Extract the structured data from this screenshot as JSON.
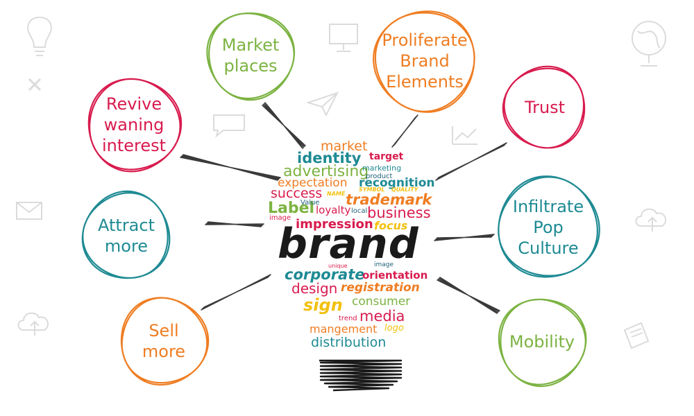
{
  "colors": {
    "red": "#d81b4e",
    "green": "#7cb342",
    "orange": "#ef7d22",
    "teal": "#1e8a93",
    "navy": "#1f5f7a",
    "yellow": "#f2c10f",
    "black": "#1a1a1a",
    "ink": "#3a3a3a",
    "faint": "#cfcfcf"
  },
  "nodes": [
    {
      "id": "revive",
      "label": "Revive\nwaning\ninterest",
      "color": "red"
    },
    {
      "id": "market",
      "label": "Market\nplaces",
      "color": "green"
    },
    {
      "id": "proliferate",
      "label": "Proliferate\nBrand\nElements",
      "color": "orange"
    },
    {
      "id": "trust",
      "label": "Trust",
      "color": "red"
    },
    {
      "id": "attract",
      "label": "Attract\nmore",
      "color": "teal"
    },
    {
      "id": "infiltrate",
      "label": "Infiltrate\nPop\nCulture",
      "color": "teal"
    },
    {
      "id": "sell",
      "label": "Sell\nmore",
      "color": "orange"
    },
    {
      "id": "mobility",
      "label": "Mobility",
      "color": "green"
    }
  ],
  "word_cloud": {
    "center_word": "brand",
    "words": [
      "market",
      "identity",
      "target",
      "advertising",
      "marketing",
      "product",
      "expectation",
      "recognition",
      "success",
      "NAME",
      "SYMBOL",
      "QUALITY",
      "trademark",
      "Label",
      "Value",
      "loyalty",
      "local",
      "business",
      "image",
      "impression",
      "focus",
      "unique",
      "image",
      "corporate",
      "orientation",
      "design",
      "registration",
      "sign",
      "consumer",
      "trend",
      "media",
      "mangement",
      "logo",
      "distribution"
    ]
  },
  "icons": [
    "lightbulb-icon",
    "globe-icon",
    "paper-plane-icon",
    "cloud-upload-icon",
    "speech-bubble-icon",
    "monitor-icon",
    "envelope-icon",
    "notepad-icon",
    "close-icon",
    "chart-icon"
  ]
}
